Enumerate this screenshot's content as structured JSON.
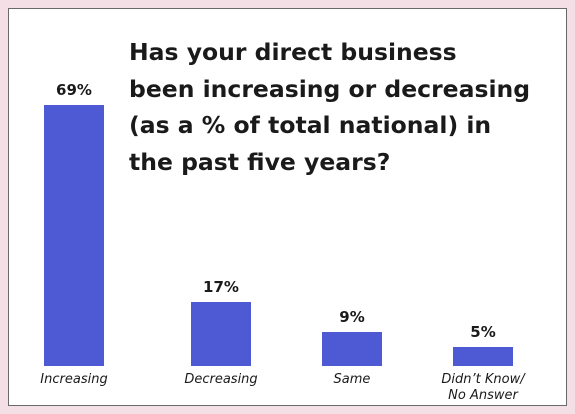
{
  "chart_data": {
    "type": "bar",
    "title": "Has your direct business\nbeen increasing or decreasing\n(as a % of total national) in\nthe past five years?",
    "categories": [
      "Increasing",
      "Decreasing",
      "Same",
      "Didn’t Know/\nNo Answer"
    ],
    "values": [
      69,
      17,
      9,
      5
    ],
    "value_labels": [
      "69%",
      "17%",
      "9%",
      "5%"
    ],
    "unit": "%",
    "ylim": [
      0,
      69
    ],
    "grid": false,
    "bar_color": "#4e59d4"
  }
}
